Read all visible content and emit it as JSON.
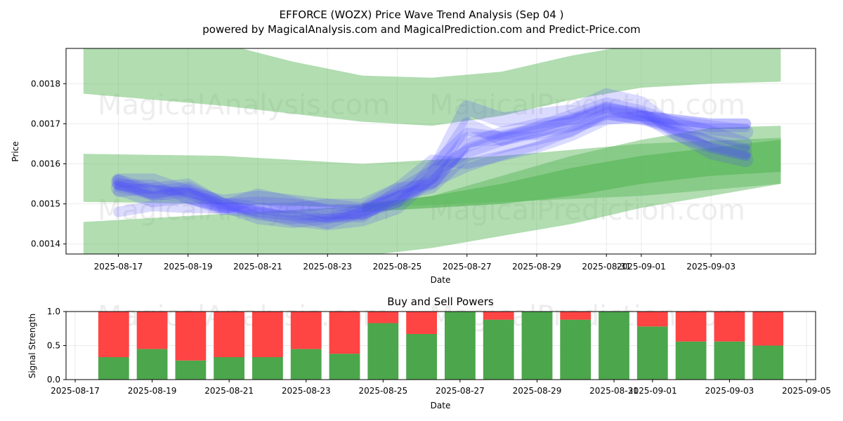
{
  "title_line1": "EFFORCE (WOZX) Price Wave Trend Analysis (Sep 04 )",
  "title_line2": "powered by MagicalAnalysis.com and MagicalPrediction.com and Predict-Price.com",
  "watermarks": [
    "MagicalAnalysis.com",
    "MagicalPrediction.com"
  ],
  "colors": {
    "band": "#5cb85c",
    "wave": "#4d4dff",
    "buy": "#4ca64c",
    "sell": "#ff4444"
  },
  "chart_data": [
    {
      "type": "line",
      "title": "",
      "xlabel": "Date",
      "ylabel": "Price",
      "grid": true,
      "xlim": [
        "2025-08-15T12:00",
        "2025-09-06T00:00"
      ],
      "ylim": [
        0.001375,
        0.001888
      ],
      "x_ticks": [
        "2025-08-17",
        "2025-08-19",
        "2025-08-21",
        "2025-08-23",
        "2025-08-25",
        "2025-08-27",
        "2025-08-29",
        "2025-08-31",
        "2025-09-01",
        "2025-09-03"
      ],
      "y_ticks": [
        "0.0014",
        "0.0015",
        "0.0016",
        "0.0017",
        "0.0018"
      ],
      "x": [
        "2025-08-17",
        "2025-08-18",
        "2025-08-19",
        "2025-08-20",
        "2025-08-21",
        "2025-08-22",
        "2025-08-23",
        "2025-08-24",
        "2025-08-25",
        "2025-08-26",
        "2025-08-27",
        "2025-08-28",
        "2025-08-29",
        "2025-08-30",
        "2025-08-31",
        "2025-09-01",
        "2025-09-02",
        "2025-09-03",
        "2025-09-04"
      ],
      "series": [
        {
          "values": [
            0.001545,
            0.001535,
            0.00153,
            0.00149,
            0.00148,
            0.00147,
            0.001465,
            0.00149,
            0.00152,
            0.00155,
            0.00159,
            0.00162,
            0.001645,
            0.00168,
            0.00172,
            0.00171,
            0.00168,
            0.00166,
            0.00164
          ]
        },
        {
          "values": [
            0.00156,
            0.00152,
            0.00153,
            0.00151,
            0.00152,
            0.00151,
            0.0015,
            0.00149,
            0.00154,
            0.00155,
            0.00165,
            0.00168,
            0.0017,
            0.00171,
            0.00174,
            0.00172,
            0.00171,
            0.0017,
            0.0017
          ]
        },
        {
          "values": [
            0.00155,
            0.00153,
            0.00154,
            0.0015,
            0.00149,
            0.00148,
            0.00147,
            0.00147,
            0.00153,
            0.00158,
            0.00163,
            0.00166,
            0.00169,
            0.00172,
            0.00175,
            0.00173,
            0.0017,
            0.00168,
            0.00165
          ]
        },
        {
          "values": [
            0.00154,
            0.00151,
            0.00152,
            0.00149,
            0.00152,
            0.0015,
            0.00148,
            0.00148,
            0.00151,
            0.00157,
            0.00174,
            0.00171,
            0.00172,
            0.00173,
            0.00177,
            0.00175,
            0.00168,
            0.00163,
            0.00161
          ]
        },
        {
          "values": [
            0.00155,
            0.00155,
            0.00151,
            0.00149,
            0.00146,
            0.00145,
            0.00146,
            0.00148,
            0.0015,
            0.0016,
            0.00168,
            0.00167,
            0.00167,
            0.00169,
            0.00171,
            0.00171,
            0.0017,
            0.00169,
            0.00169
          ]
        },
        {
          "values": [
            0.00153,
            0.00154,
            0.00155,
            0.0015,
            0.00148,
            0.00147,
            0.00145,
            0.00148,
            0.00152,
            0.00154,
            0.00162,
            0.00164,
            0.00166,
            0.00168,
            0.00173,
            0.00172,
            0.00167,
            0.00164,
            0.00162
          ]
        },
        {
          "values": [
            0.00156,
            0.00156,
            0.00153,
            0.00149,
            0.00148,
            0.00146,
            0.00145,
            0.00146,
            0.00149,
            0.00157,
            0.0017,
            0.00166,
            0.00168,
            0.00171,
            0.00174,
            0.00172,
            0.00169,
            0.00165,
            0.00163
          ]
        },
        {
          "values": [
            0.001555,
            0.00153,
            0.00152,
            0.001495,
            0.0015,
            0.001495,
            0.00148,
            0.00148,
            0.00152,
            0.001555,
            0.00166,
            0.001665,
            0.001685,
            0.0017,
            0.00173,
            0.001715,
            0.0017,
            0.00169,
            0.00168
          ]
        },
        {
          "values": [
            0.00154,
            0.00152,
            0.00154,
            0.001505,
            0.00147,
            0.00146,
            0.001465,
            0.00147,
            0.00151,
            0.00156,
            0.00164,
            0.00167,
            0.00169,
            0.00171,
            0.00174,
            0.00173,
            0.00168,
            0.00164,
            0.00162
          ]
        },
        {
          "values": [
            0.00148,
            0.001495,
            0.00149,
            0.00149,
            0.00149,
            0.00149,
            0.0015,
            0.0015,
            0.00154,
            0.00161,
            0.0016,
            0.00162,
            0.00164,
            0.00167,
            0.00171,
            0.00172,
            0.00171,
            0.0017,
            0.0017
          ]
        }
      ],
      "bands": [
        {
          "x": [
            "2025-08-16",
            "2025-08-18",
            "2025-08-20",
            "2025-08-22",
            "2025-08-24",
            "2025-08-26",
            "2025-08-28",
            "2025-08-30",
            "2025-09-01",
            "2025-09-03",
            "2025-09-05"
          ],
          "lower": [
            0.001775,
            0.00176,
            0.001745,
            0.001725,
            0.001705,
            0.001695,
            0.00172,
            0.00176,
            0.00179,
            0.0018,
            0.001805
          ],
          "upper": [
            0.0019,
            0.0019,
            0.0019,
            0.001855,
            0.00182,
            0.001815,
            0.00183,
            0.00187,
            0.0019,
            0.0019,
            0.0019
          ]
        },
        {
          "x": [
            "2025-08-16",
            "2025-08-20",
            "2025-08-24",
            "2025-08-28",
            "2025-09-01",
            "2025-09-05"
          ],
          "lower": [
            0.001505,
            0.0015,
            0.00149,
            0.001505,
            0.00152,
            0.00155
          ],
          "upper": [
            0.001625,
            0.00162,
            0.0016,
            0.00162,
            0.00165,
            0.001665
          ]
        },
        {
          "x": [
            "2025-08-16",
            "2025-08-20",
            "2025-08-24",
            "2025-08-26",
            "2025-08-28",
            "2025-08-30",
            "2025-09-01",
            "2025-09-03",
            "2025-09-05"
          ],
          "lower": [
            0.00137,
            0.00137,
            0.00137,
            0.00139,
            0.00142,
            0.00145,
            0.00149,
            0.00152,
            0.00155
          ],
          "upper": [
            0.001455,
            0.001475,
            0.001495,
            0.00152,
            0.00157,
            0.00162,
            0.00166,
            0.00169,
            0.001695
          ]
        },
        {
          "x": [
            "2025-08-24",
            "2025-08-26",
            "2025-08-28",
            "2025-08-30",
            "2025-09-01",
            "2025-09-03",
            "2025-09-05"
          ],
          "lower": [
            0.00148,
            0.00149,
            0.0015,
            0.00152,
            0.00155,
            0.00157,
            0.00158
          ],
          "upper": [
            0.0015,
            0.00152,
            0.00155,
            0.00159,
            0.00162,
            0.00164,
            0.00166
          ]
        }
      ]
    },
    {
      "type": "bar",
      "title": "Buy and Sell Powers",
      "xlabel": "Date",
      "ylabel": "Signal Strength",
      "grid": true,
      "ylim": [
        0,
        1
      ],
      "xlim": [
        "2025-08-17T00:00",
        "2025-09-05T00:00"
      ],
      "x_ticks": [
        "2025-08-17",
        "2025-08-19",
        "2025-08-21",
        "2025-08-23",
        "2025-08-25",
        "2025-08-27",
        "2025-08-29",
        "2025-08-31",
        "2025-09-01",
        "2025-09-03",
        "2025-09-05"
      ],
      "y_ticks": [
        "0.0",
        "0.5",
        "1.0"
      ],
      "categories": [
        "2025-08-18",
        "2025-08-19",
        "2025-08-20",
        "2025-08-21",
        "2025-08-22",
        "2025-08-23",
        "2025-08-24",
        "2025-08-25",
        "2025-08-26",
        "2025-08-27",
        "2025-08-28",
        "2025-08-29",
        "2025-08-30",
        "2025-08-31",
        "2025-09-01",
        "2025-09-02",
        "2025-09-03",
        "2025-09-04"
      ],
      "buy": [
        0.33,
        0.45,
        0.28,
        0.33,
        0.33,
        0.45,
        0.38,
        0.83,
        0.67,
        1.0,
        0.88,
        1.0,
        0.88,
        1.0,
        0.78,
        0.56,
        0.56,
        0.5
      ],
      "sell": [
        0.67,
        0.55,
        0.72,
        0.67,
        0.67,
        0.55,
        0.62,
        0.17,
        0.33,
        0.0,
        0.12,
        0.0,
        0.12,
        0.0,
        0.22,
        0.44,
        0.44,
        0.5
      ]
    }
  ]
}
